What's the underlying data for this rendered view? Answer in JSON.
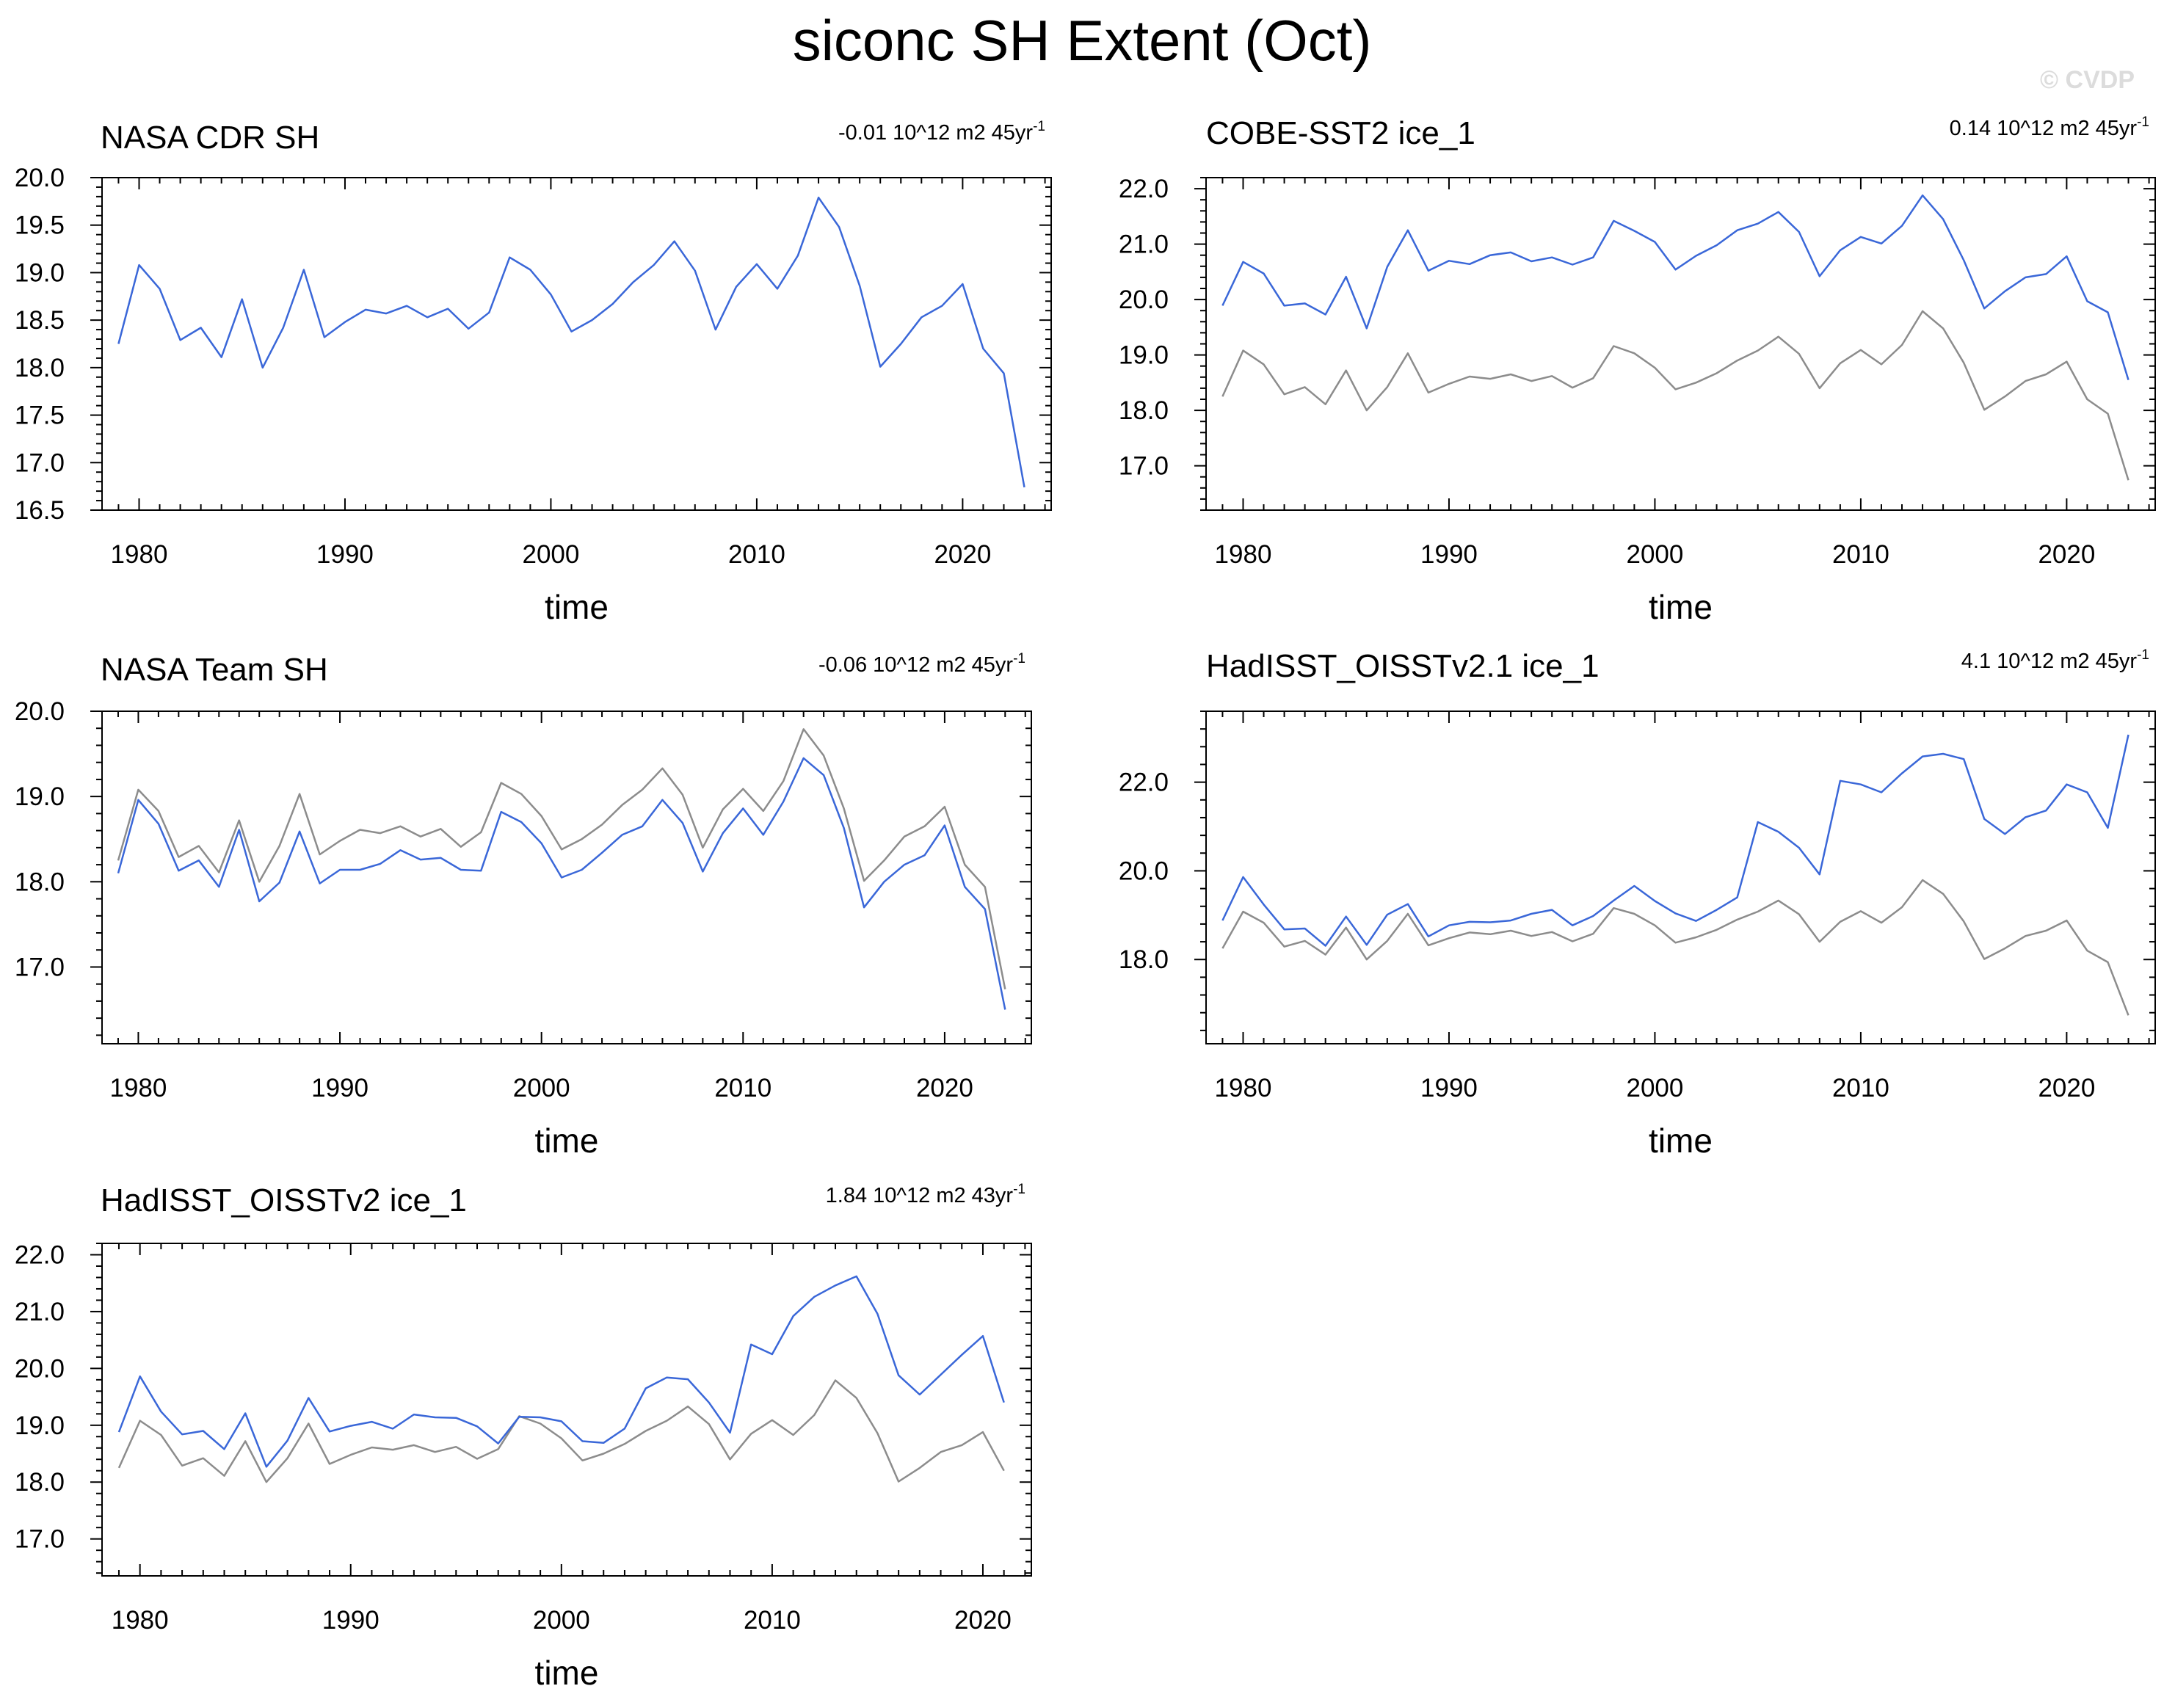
{
  "title": "siconc SH Extent (Oct)",
  "watermark": "© CVDP",
  "colors": {
    "model": "#3A67D8",
    "obs": "#8C8C8C",
    "axis": "#000000"
  },
  "chart_data": [
    {
      "type": "line",
      "title": "NASA CDR SH",
      "trend": "-0.01 10^12 m2 45yr",
      "trend_sup": "-1",
      "xlabel": "time",
      "xlim": [
        1978.2,
        2024.3
      ],
      "ylim": [
        16.5,
        20.0
      ],
      "xticks": [
        1980,
        1990,
        2000,
        2010,
        2020
      ],
      "yticks": [
        "20.0",
        "19.5",
        "19.0",
        "18.5",
        "18.0",
        "17.5",
        "17.0",
        "16.5"
      ],
      "x_start": 1979,
      "series": [
        {
          "role": "model",
          "values": [
            18.25,
            19.08,
            18.83,
            18.29,
            18.42,
            18.11,
            18.72,
            18.0,
            18.42,
            19.03,
            18.32,
            18.48,
            18.61,
            18.57,
            18.65,
            18.53,
            18.62,
            18.41,
            18.58,
            19.16,
            19.03,
            18.77,
            18.38,
            18.5,
            18.67,
            18.9,
            19.08,
            19.33,
            19.02,
            18.4,
            18.85,
            19.09,
            18.83,
            19.18,
            19.79,
            19.48,
            18.86,
            18.01,
            18.25,
            18.53,
            18.65,
            18.88,
            18.2,
            17.94,
            16.74
          ]
        }
      ]
    },
    {
      "type": "line",
      "title": "COBE-SST2 ice_1",
      "trend": "0.14 10^12 m2 45yr",
      "trend_sup": "-1",
      "xlabel": "time",
      "xlim": [
        1978.2,
        2024.3
      ],
      "ylim": [
        16.2,
        22.2
      ],
      "xticks": [
        1980,
        1990,
        2000,
        2010,
        2020
      ],
      "yticks": [
        "22.0",
        "21.0",
        "20.0",
        "19.0",
        "18.0",
        "17.0"
      ],
      "x_start": 1979,
      "series": [
        {
          "role": "model",
          "values": [
            19.89,
            20.68,
            20.47,
            19.89,
            19.93,
            19.73,
            20.41,
            19.48,
            20.59,
            21.25,
            20.52,
            20.7,
            20.64,
            20.8,
            20.85,
            20.69,
            20.76,
            20.63,
            20.76,
            21.42,
            21.24,
            21.04,
            20.54,
            20.79,
            20.98,
            21.25,
            21.37,
            21.58,
            21.22,
            20.42,
            20.89,
            21.13,
            21.01,
            21.33,
            21.88,
            21.45,
            20.71,
            19.84,
            20.15,
            20.4,
            20.46,
            20.78,
            19.97,
            19.77,
            18.55
          ]
        },
        {
          "role": "obs",
          "values": [
            18.25,
            19.08,
            18.83,
            18.29,
            18.42,
            18.11,
            18.72,
            18.0,
            18.42,
            19.03,
            18.32,
            18.48,
            18.61,
            18.57,
            18.65,
            18.53,
            18.62,
            18.41,
            18.58,
            19.16,
            19.03,
            18.77,
            18.38,
            18.5,
            18.67,
            18.9,
            19.08,
            19.33,
            19.02,
            18.4,
            18.85,
            19.09,
            18.83,
            19.18,
            19.79,
            19.48,
            18.86,
            18.01,
            18.25,
            18.53,
            18.65,
            18.88,
            18.2,
            17.94,
            16.74
          ]
        }
      ]
    },
    {
      "type": "line",
      "title": "NASA Team SH",
      "trend": "-0.06 10^12 m2 45yr",
      "trend_sup": "-1",
      "xlabel": "time",
      "xlim": [
        1978.2,
        2024.3
      ],
      "ylim": [
        16.1,
        20.0
      ],
      "xticks": [
        1980,
        1990,
        2000,
        2010,
        2020
      ],
      "yticks": [
        "20.0",
        "19.0",
        "18.0",
        "17.0"
      ],
      "x_start": 1979,
      "series": [
        {
          "role": "model",
          "values": [
            18.1,
            18.96,
            18.68,
            18.13,
            18.25,
            17.94,
            18.61,
            17.77,
            17.99,
            18.59,
            17.98,
            18.14,
            18.14,
            18.21,
            18.37,
            18.26,
            18.28,
            18.14,
            18.13,
            18.82,
            18.7,
            18.45,
            18.05,
            18.14,
            18.34,
            18.55,
            18.65,
            18.96,
            18.69,
            18.12,
            18.57,
            18.86,
            18.55,
            18.94,
            19.45,
            19.25,
            18.63,
            17.7,
            18.0,
            18.2,
            18.31,
            18.66,
            17.94,
            17.68,
            16.5
          ]
        },
        {
          "role": "obs",
          "values": [
            18.25,
            19.08,
            18.83,
            18.29,
            18.42,
            18.11,
            18.72,
            18.0,
            18.42,
            19.03,
            18.32,
            18.48,
            18.61,
            18.57,
            18.65,
            18.53,
            18.62,
            18.41,
            18.58,
            19.16,
            19.03,
            18.77,
            18.38,
            18.5,
            18.67,
            18.9,
            19.08,
            19.33,
            19.02,
            18.4,
            18.85,
            19.09,
            18.83,
            19.18,
            19.79,
            19.48,
            18.86,
            18.01,
            18.25,
            18.53,
            18.65,
            18.88,
            18.2,
            17.94,
            16.74
          ]
        }
      ]
    },
    {
      "type": "line",
      "title": "HadISST_OISSTv2.1 ice_1",
      "trend": "4.1 10^12 m2 45yr",
      "trend_sup": "-1",
      "xlabel": "time",
      "xlim": [
        1978.2,
        2024.3
      ],
      "ylim": [
        16.1,
        23.6
      ],
      "xticks": [
        1980,
        1990,
        2000,
        2010,
        2020
      ],
      "yticks": [
        "22.0",
        "20.0",
        "18.0"
      ],
      "x_start": 1979,
      "series": [
        {
          "role": "model",
          "values": [
            18.88,
            19.86,
            19.24,
            18.68,
            18.7,
            18.31,
            18.97,
            18.33,
            19.01,
            19.25,
            18.52,
            18.77,
            18.85,
            18.84,
            18.88,
            19.03,
            19.12,
            18.77,
            18.98,
            19.33,
            19.66,
            19.32,
            19.04,
            18.87,
            19.12,
            19.4,
            21.1,
            20.88,
            20.52,
            19.92,
            22.03,
            21.95,
            21.77,
            22.2,
            22.58,
            22.64,
            22.52,
            21.17,
            20.83,
            21.21,
            21.36,
            21.95,
            21.77,
            20.97,
            23.07
          ]
        },
        {
          "role": "obs",
          "values": [
            18.25,
            19.08,
            18.83,
            18.29,
            18.42,
            18.11,
            18.72,
            18.0,
            18.42,
            19.03,
            18.32,
            18.48,
            18.61,
            18.57,
            18.65,
            18.53,
            18.62,
            18.41,
            18.58,
            19.16,
            19.03,
            18.77,
            18.38,
            18.5,
            18.67,
            18.9,
            19.08,
            19.33,
            19.02,
            18.4,
            18.85,
            19.09,
            18.83,
            19.18,
            19.79,
            19.48,
            18.86,
            18.01,
            18.25,
            18.53,
            18.65,
            18.88,
            18.2,
            17.94,
            16.74
          ]
        }
      ]
    },
    {
      "type": "line",
      "title": "HadISST_OISSTv2 ice_1",
      "trend": "1.84 10^12 m2 43yr",
      "trend_sup": "-1",
      "xlabel": "time",
      "xlim": [
        1978.2,
        2022.3
      ],
      "ylim": [
        16.35,
        22.2
      ],
      "xticks": [
        1980,
        1990,
        2000,
        2010,
        2020
      ],
      "yticks": [
        "22.0",
        "21.0",
        "20.0",
        "19.0",
        "18.0",
        "17.0"
      ],
      "x_start": 1979,
      "series": [
        {
          "role": "model",
          "values": [
            18.88,
            19.86,
            19.24,
            18.84,
            18.9,
            18.58,
            19.21,
            18.27,
            18.73,
            19.48,
            18.89,
            18.99,
            19.06,
            18.94,
            19.19,
            19.14,
            19.13,
            18.98,
            18.68,
            19.15,
            19.14,
            19.07,
            18.72,
            18.69,
            18.94,
            19.65,
            19.84,
            19.81,
            19.4,
            18.87,
            20.42,
            20.25,
            20.92,
            21.26,
            21.46,
            21.62,
            20.96,
            19.88,
            19.54,
            19.89,
            20.24,
            20.57,
            19.4
          ]
        },
        {
          "role": "obs",
          "values": [
            18.25,
            19.08,
            18.83,
            18.29,
            18.42,
            18.11,
            18.72,
            18.0,
            18.42,
            19.03,
            18.32,
            18.48,
            18.61,
            18.57,
            18.65,
            18.53,
            18.62,
            18.41,
            18.58,
            19.16,
            19.03,
            18.77,
            18.38,
            18.5,
            18.67,
            18.9,
            19.08,
            19.33,
            19.02,
            18.4,
            18.85,
            19.09,
            18.83,
            19.18,
            19.79,
            19.48,
            18.86,
            18.01,
            18.25,
            18.53,
            18.65,
            18.88,
            18.2
          ]
        }
      ]
    }
  ]
}
